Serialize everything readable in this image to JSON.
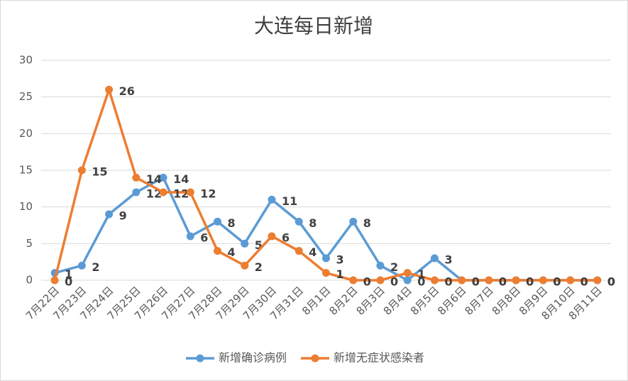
{
  "chart_data": {
    "type": "line",
    "title": "大连每日新增",
    "categories": [
      "7月22日",
      "7月23日",
      "7月24日",
      "7月25日",
      "7月26日",
      "7月27日",
      "7月28日",
      "7月29日",
      "7月30日",
      "7月31日",
      "8月1日",
      "8月2日",
      "8月3日",
      "8月4日",
      "8月5日",
      "8月6日",
      "8月7日",
      "8月8日",
      "8月9日",
      "8月10日",
      "8月11日"
    ],
    "series": [
      {
        "name": "新增确诊病例",
        "color": "#5b9bd5",
        "values": [
          1,
          2,
          9,
          12,
          14,
          6,
          8,
          5,
          11,
          8,
          3,
          8,
          2,
          0,
          3,
          0,
          0,
          0,
          0,
          0,
          0
        ]
      },
      {
        "name": "新增无症状感染者",
        "color": "#ed7d31",
        "values": [
          0,
          15,
          26,
          14,
          12,
          12,
          4,
          2,
          6,
          4,
          1,
          0,
          0,
          1,
          0,
          0,
          0,
          0,
          0,
          0,
          0
        ]
      }
    ],
    "ylim": [
      0,
      30
    ],
    "yticks": [
      0,
      5,
      10,
      15,
      20,
      25,
      30
    ],
    "grid": true,
    "legend": "bottom"
  }
}
